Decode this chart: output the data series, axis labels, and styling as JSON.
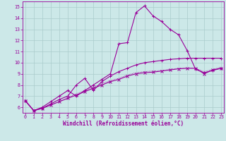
{
  "xlabel": "Windchill (Refroidissement éolien,°C)",
  "bg_color": "#cce8e8",
  "grid_color": "#aacccc",
  "line_color": "#990099",
  "xlim": [
    -0.3,
    23.3
  ],
  "ylim": [
    5.5,
    15.5
  ],
  "xticks": [
    0,
    1,
    2,
    3,
    4,
    5,
    6,
    7,
    8,
    9,
    10,
    11,
    12,
    13,
    14,
    15,
    16,
    17,
    18,
    19,
    20,
    21,
    22,
    23
  ],
  "yticks": [
    6,
    7,
    8,
    9,
    10,
    11,
    12,
    13,
    14,
    15
  ],
  "line1_x": [
    0,
    1,
    2,
    3,
    4,
    5,
    6,
    7,
    8,
    9,
    10,
    11,
    12,
    13,
    14,
    15,
    16,
    17,
    18,
    19,
    20,
    21,
    22,
    23
  ],
  "line1_y": [
    6.6,
    5.7,
    5.9,
    6.2,
    6.5,
    6.8,
    7.1,
    7.4,
    7.7,
    8.0,
    8.3,
    8.5,
    8.8,
    9.0,
    9.1,
    9.15,
    9.25,
    9.35,
    9.45,
    9.5,
    9.5,
    9.0,
    9.35,
    9.5
  ],
  "line2_x": [
    0,
    1,
    2,
    3,
    4,
    5,
    6,
    7,
    8,
    9,
    10,
    11,
    12,
    13,
    14,
    15,
    16,
    17,
    18,
    19,
    20,
    21,
    22,
    23
  ],
  "line2_y": [
    6.6,
    5.7,
    6.0,
    6.5,
    7.0,
    7.5,
    7.0,
    7.5,
    8.0,
    8.5,
    9.0,
    11.7,
    11.8,
    14.5,
    15.1,
    14.2,
    13.7,
    13.0,
    12.5,
    11.1,
    9.4,
    9.1,
    9.3,
    9.5
  ],
  "line3_x": [
    0,
    1,
    2,
    3,
    4,
    5,
    6,
    7,
    8,
    9,
    10,
    11,
    12,
    13,
    14,
    15,
    16,
    17,
    18,
    19,
    20,
    21,
    22,
    23
  ],
  "line3_y": [
    6.6,
    5.7,
    5.9,
    6.2,
    6.5,
    6.85,
    7.2,
    7.5,
    7.8,
    8.1,
    8.4,
    8.6,
    8.9,
    9.1,
    9.2,
    9.25,
    9.3,
    9.4,
    9.5,
    9.5,
    9.5,
    9.2,
    9.4,
    9.6
  ],
  "line4_x": [
    0,
    1,
    2,
    3,
    4,
    5,
    6,
    7,
    8,
    9,
    10,
    11,
    12,
    13,
    14,
    15,
    16,
    17,
    18,
    19,
    20,
    21,
    22,
    23
  ],
  "line4_y": [
    6.6,
    5.7,
    5.9,
    6.3,
    6.7,
    7.0,
    8.0,
    8.6,
    7.5,
    8.3,
    8.8,
    9.2,
    9.5,
    9.8,
    10.0,
    10.1,
    10.2,
    10.3,
    10.35,
    10.4,
    10.4,
    10.4,
    10.4,
    10.4
  ],
  "xlabel_fontsize": 5.5,
  "tick_fontsize": 4.8,
  "lw": 0.8,
  "marker_size": 2.5
}
